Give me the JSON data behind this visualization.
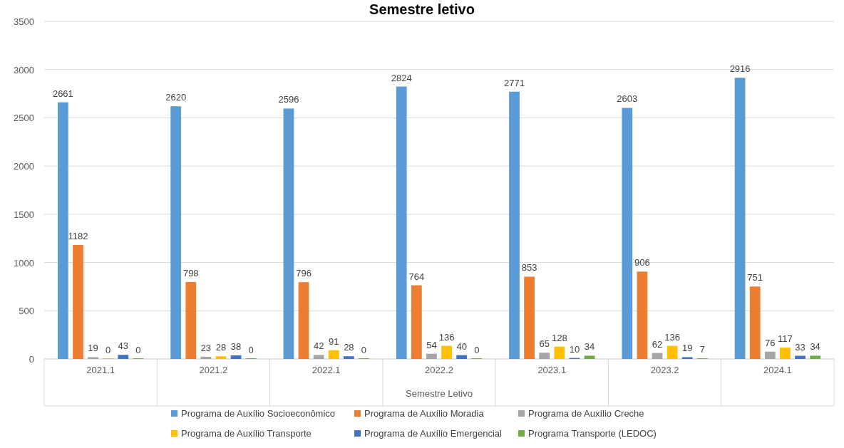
{
  "chart_data": {
    "type": "bar",
    "title": "Semestre letivo",
    "xlabel": "Semestre Letivo",
    "categories": [
      "2021.1",
      "2021.2",
      "2022.1",
      "2022.2",
      "2023.1",
      "2023.2",
      "2024.1"
    ],
    "series": [
      {
        "name": "Programa de Auxílio Socioeconômico",
        "color": "#5b9bd5",
        "values": [
          2661,
          2620,
          2596,
          2824,
          2771,
          2603,
          2916
        ]
      },
      {
        "name": "Programa de Auxílio Moradia",
        "color": "#ed7d31",
        "values": [
          1182,
          798,
          796,
          764,
          853,
          906,
          751
        ]
      },
      {
        "name": "Programa de Auxílio Creche",
        "color": "#a5a5a5",
        "values": [
          19,
          23,
          42,
          54,
          65,
          62,
          76
        ]
      },
      {
        "name": "Programa de Auxílio Transporte",
        "color": "#ffc000",
        "values": [
          0,
          28,
          91,
          136,
          128,
          136,
          117
        ]
      },
      {
        "name": "Programa de Auxílio Emergencial",
        "color": "#4472c4",
        "values": [
          43,
          38,
          28,
          40,
          10,
          19,
          33
        ]
      },
      {
        "name": "Programa Transporte (LEDOC)",
        "color": "#70ad47",
        "values": [
          0,
          0,
          0,
          0,
          34,
          7,
          34
        ]
      }
    ],
    "ylim": [
      0,
      3500
    ],
    "yticks": [
      0,
      500,
      1000,
      1500,
      2000,
      2500,
      3000,
      3500
    ],
    "grid": "y",
    "data_labels": true,
    "legend": "bottom"
  }
}
